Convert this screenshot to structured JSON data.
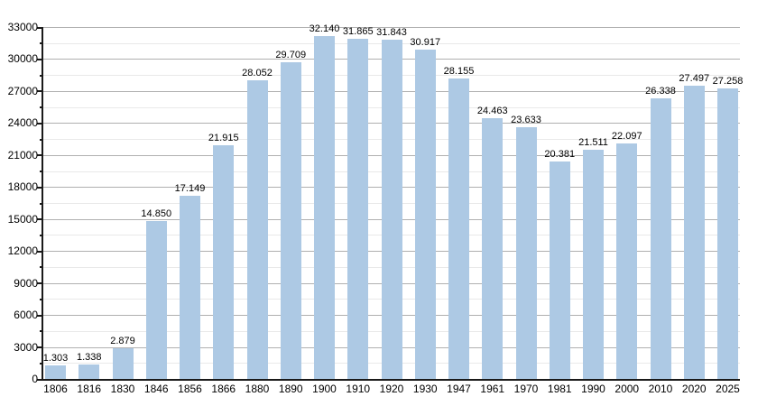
{
  "chart_data": {
    "type": "bar",
    "title": "",
    "xlabel": "",
    "ylabel": "",
    "categories": [
      "1806",
      "1816",
      "1830",
      "1846",
      "1856",
      "1866",
      "1880",
      "1890",
      "1900",
      "1910",
      "1920",
      "1930",
      "1947",
      "1961",
      "1970",
      "1981",
      "1990",
      "2000",
      "2010",
      "2020",
      "2025"
    ],
    "values": [
      1303,
      1338,
      2879,
      14850,
      17149,
      21915,
      28052,
      29709,
      32140,
      31865,
      31843,
      30917,
      28155,
      24463,
      23633,
      20381,
      21511,
      22097,
      26338,
      27497,
      27258
    ],
    "value_labels": [
      "1.303",
      "1.338",
      "2.879",
      "14.850",
      "17.149",
      "21.915",
      "28.052",
      "29.709",
      "32.140",
      "31.865",
      "31.843",
      "30.917",
      "28.155",
      "24.463",
      "23.633",
      "20.381",
      "21.511",
      "22.097",
      "26.338",
      "27.497",
      "27.258"
    ],
    "ylim": [
      0,
      33000
    ],
    "y_major_tick_step": 3000,
    "y_minor_tick_step": 1500,
    "y_tick_labels": [
      "0",
      "3000",
      "6000",
      "9000",
      "12000",
      "15000",
      "18000",
      "21000",
      "24000",
      "27000",
      "30000",
      "33000"
    ],
    "grid": "horizontal, major and minor",
    "legend_position": "none",
    "colors": {
      "bar_fill": "#adc9e4",
      "major_gridline": "#b0b0b0",
      "minor_gridline": "#e9e9e9",
      "axis": "#1a1a1a",
      "text": "#000000",
      "background": "#ffffff"
    }
  }
}
